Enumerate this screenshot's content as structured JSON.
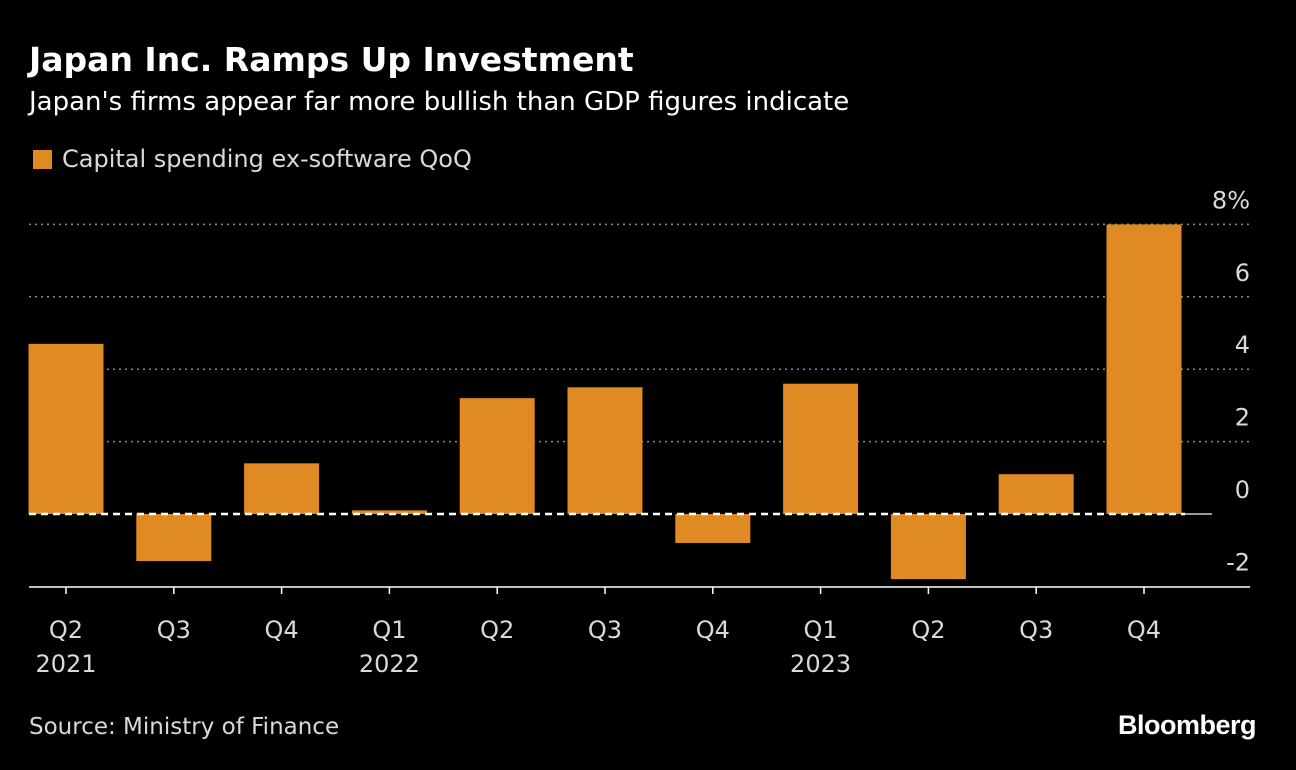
{
  "title": "Japan Inc. Ramps Up Investment",
  "subtitle": "Japan's firms appear far more bullish than GDP figures indicate",
  "source": "Source: Ministry of Finance",
  "brand": "Bloomberg",
  "colors": {
    "background": "#000000",
    "bar": "#e08a24",
    "text": "#ffffff",
    "muted_text": "#d9d9d9",
    "grid": "#8c8c8c"
  },
  "chart_data": {
    "type": "bar",
    "legend": [
      "Capital spending ex-software QoQ"
    ],
    "legend_position": "top-left",
    "categories": [
      "Q2 2021",
      "Q3 2021",
      "Q4 2021",
      "Q1 2022",
      "Q2 2022",
      "Q3 2022",
      "Q4 2022",
      "Q1 2023",
      "Q2 2023",
      "Q3 2023",
      "Q4 2023"
    ],
    "x_tick_labels": [
      {
        "quarter": "Q2",
        "year": "2021"
      },
      {
        "quarter": "Q3",
        "year": ""
      },
      {
        "quarter": "Q4",
        "year": ""
      },
      {
        "quarter": "Q1",
        "year": "2022"
      },
      {
        "quarter": "Q2",
        "year": ""
      },
      {
        "quarter": "Q3",
        "year": ""
      },
      {
        "quarter": "Q4",
        "year": ""
      },
      {
        "quarter": "Q1",
        "year": "2023"
      },
      {
        "quarter": "Q2",
        "year": ""
      },
      {
        "quarter": "Q3",
        "year": ""
      },
      {
        "quarter": "Q4",
        "year": ""
      }
    ],
    "series": [
      {
        "name": "Capital spending ex-software QoQ",
        "values": [
          4.7,
          -1.3,
          1.4,
          0.1,
          3.2,
          3.5,
          -0.8,
          3.6,
          -1.8,
          1.1,
          8.0
        ]
      }
    ],
    "y_ticks": [
      -2,
      0,
      2,
      4,
      6,
      8
    ],
    "y_tick_labels": [
      "-2",
      "0",
      "2",
      "4",
      "6",
      "8%"
    ],
    "ylim": [
      -2,
      8
    ],
    "y_axis_side": "right",
    "grid": true,
    "zero_line": "dashed"
  }
}
